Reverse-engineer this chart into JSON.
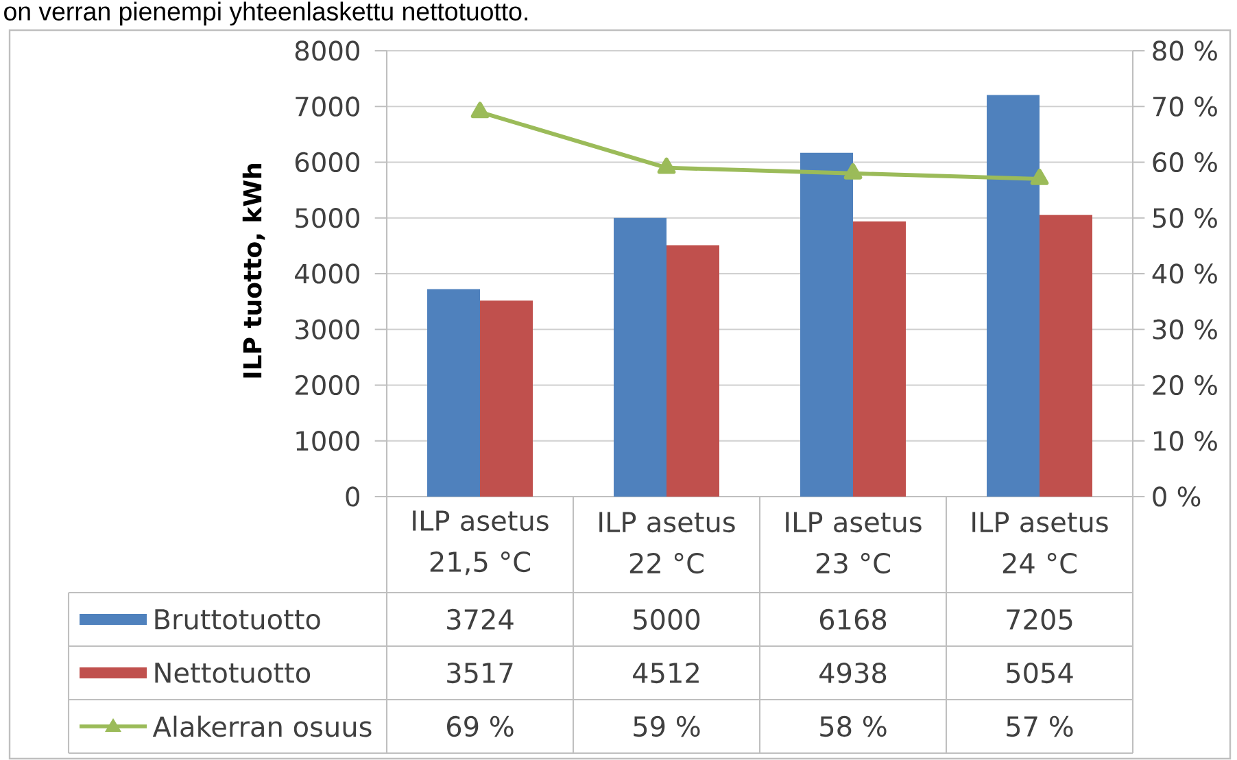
{
  "chart_data": {
    "type": "bar",
    "annotations": [
      "on verran pienempi yhteenlaskettu nettotuotto."
    ],
    "ylabel": "ILP tuotto, kWh",
    "categories": [
      "ILP asetus 21,5 °C",
      "ILP asetus 22 °C",
      "ILP asetus 23 °C",
      "ILP asetus 24 °C"
    ],
    "series": [
      {
        "name": "Bruttotuotto",
        "color": "#4f81bd",
        "values": [
          3724,
          5000,
          6168,
          7205
        ]
      },
      {
        "name": "Nettotuotto",
        "color": "#c0504d",
        "values": [
          3517,
          4512,
          4938,
          5054
        ]
      },
      {
        "name": "Alakerran osuus",
        "type": "line",
        "axis": "y2",
        "color": "#9bbb59",
        "marker": "triangle",
        "values": [
          69,
          59,
          58,
          57
        ],
        "value_labels": [
          "69 %",
          "59 %",
          "58 %",
          "57 %"
        ]
      }
    ],
    "ylim": [
      0,
      8000
    ],
    "yticks": [
      0,
      1000,
      2000,
      3000,
      4000,
      5000,
      6000,
      7000,
      8000
    ],
    "y2lim": [
      0,
      80
    ],
    "y2ticks": [
      {
        "value": 0,
        "label": "0 %"
      },
      {
        "value": 10,
        "label": "10 %"
      },
      {
        "value": 20,
        "label": "20 %"
      },
      {
        "value": 30,
        "label": "30 %"
      },
      {
        "value": 40,
        "label": "40 %"
      },
      {
        "value": 50,
        "label": "50 %"
      },
      {
        "value": 60,
        "label": "60 %"
      },
      {
        "value": 70,
        "label": "70 %"
      },
      {
        "value": 80,
        "label": "80 %"
      }
    ],
    "grid": "y",
    "legend": "bottom",
    "data_labels": true
  }
}
